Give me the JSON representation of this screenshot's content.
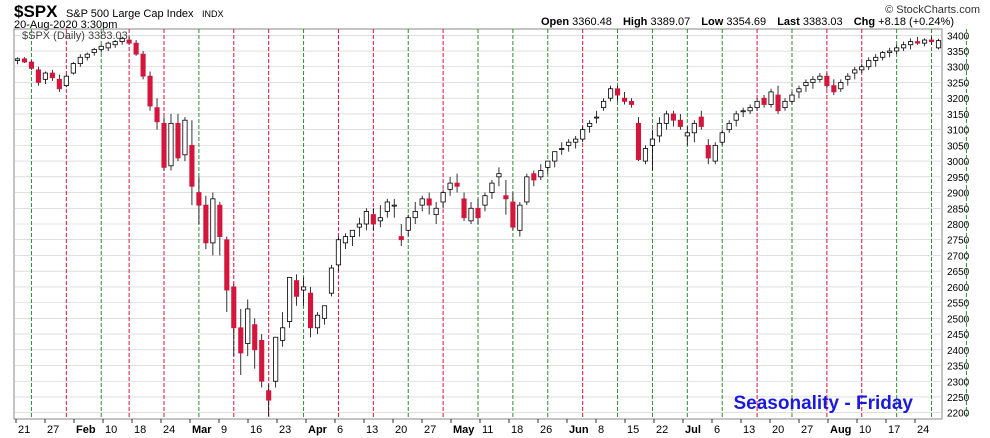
{
  "header": {
    "symbol": "$SPX",
    "description": "S&P 500 Large Cap Index",
    "exchange": "INDX",
    "brand": "© StockCharts.com",
    "date": "20-Aug-2020 3:30pm",
    "ohlc": {
      "open_label": "Open",
      "open": "3360.48",
      "high_label": "High",
      "high": "3389.07",
      "low_label": "Low",
      "low": "3354.69",
      "last_label": "Last",
      "last": "3383.03",
      "chg_label": "Chg",
      "chg": "+8.18 (+0.24%)"
    },
    "legend": "$SPX (Daily) 3383.03"
  },
  "colors": {
    "up": "#ffffff",
    "down": "#d4163c",
    "friday_up": "#2e8b2e",
    "friday_down": "#d4163c",
    "grid": "#cccccc",
    "annotation": "#1a1adc"
  },
  "annotation": "Seasonality - Friday",
  "chart_data": {
    "type": "candlestick",
    "title": "$SPX (Daily)",
    "yticks": [
      2200,
      2250,
      2300,
      2350,
      2400,
      2450,
      2500,
      2550,
      2600,
      2650,
      2700,
      2750,
      2800,
      2850,
      2900,
      2950,
      3000,
      3050,
      3100,
      3150,
      3200,
      3250,
      3300,
      3350,
      3400
    ],
    "ylim": [
      2180,
      3420
    ],
    "xticks": [
      {
        "label": "21",
        "month": false
      },
      {
        "label": "27",
        "month": false
      },
      {
        "label": "Feb",
        "month": true
      },
      {
        "label": "10",
        "month": false
      },
      {
        "label": "18",
        "month": false
      },
      {
        "label": "24",
        "month": false
      },
      {
        "label": "Mar",
        "month": true
      },
      {
        "label": "9",
        "month": false
      },
      {
        "label": "16",
        "month": false
      },
      {
        "label": "23",
        "month": false
      },
      {
        "label": "Apr",
        "month": true
      },
      {
        "label": "6",
        "month": false
      },
      {
        "label": "13",
        "month": false
      },
      {
        "label": "20",
        "month": false
      },
      {
        "label": "27",
        "month": false
      },
      {
        "label": "May",
        "month": true
      },
      {
        "label": "11",
        "month": false
      },
      {
        "label": "18",
        "month": false
      },
      {
        "label": "26",
        "month": false
      },
      {
        "label": "Jun",
        "month": true
      },
      {
        "label": "8",
        "month": false
      },
      {
        "label": "15",
        "month": false
      },
      {
        "label": "22",
        "month": false
      },
      {
        "label": "Jul",
        "month": true
      },
      {
        "label": "6",
        "month": false
      },
      {
        "label": "13",
        "month": false
      },
      {
        "label": "20",
        "month": false
      },
      {
        "label": "27",
        "month": false
      },
      {
        "label": "Aug",
        "month": true
      },
      {
        "label": "10",
        "month": false
      },
      {
        "label": "17",
        "month": false
      },
      {
        "label": "24",
        "month": false
      }
    ],
    "friday_lines": [
      {
        "index": 2,
        "result": "up"
      },
      {
        "index": 7,
        "result": "down"
      },
      {
        "index": 12,
        "result": "up"
      },
      {
        "index": 16,
        "result": "down"
      },
      {
        "index": 21,
        "result": "down"
      },
      {
        "index": 26,
        "result": "up"
      },
      {
        "index": 31,
        "result": "down"
      },
      {
        "index": 36,
        "result": "down"
      },
      {
        "index": 41,
        "result": "up"
      },
      {
        "index": 46,
        "result": "down"
      },
      {
        "index": 51,
        "result": "down"
      },
      {
        "index": 56,
        "result": "up"
      },
      {
        "index": 61,
        "result": "down"
      },
      {
        "index": 66,
        "result": "up"
      },
      {
        "index": 71,
        "result": "up"
      },
      {
        "index": 76,
        "result": "up"
      },
      {
        "index": 81,
        "result": "down"
      },
      {
        "index": 86,
        "result": "up"
      },
      {
        "index": 91,
        "result": "up"
      },
      {
        "index": 96,
        "result": "up"
      },
      {
        "index": 101,
        "result": "up"
      },
      {
        "index": 106,
        "result": "down"
      },
      {
        "index": 111,
        "result": "up"
      },
      {
        "index": 116,
        "result": "down"
      },
      {
        "index": 121,
        "result": "down"
      },
      {
        "index": 126,
        "result": "up"
      },
      {
        "index": 131,
        "result": "up"
      },
      {
        "index": 136,
        "result": "up"
      },
      {
        "index": 141,
        "result": "up"
      },
      {
        "index": 146,
        "result": "up"
      },
      {
        "index": 151,
        "result": "up"
      },
      {
        "index": 156,
        "result": "down"
      }
    ],
    "ohlc": [
      [
        3320,
        3330,
        3308,
        3325
      ],
      [
        3325,
        3330,
        3312,
        3315
      ],
      [
        3315,
        3320,
        3290,
        3295
      ],
      [
        3290,
        3300,
        3240,
        3250
      ],
      [
        3260,
        3285,
        3245,
        3280
      ],
      [
        3280,
        3290,
        3255,
        3265
      ],
      [
        3260,
        3275,
        3220,
        3230
      ],
      [
        3240,
        3275,
        3235,
        3270
      ],
      [
        3280,
        3315,
        3275,
        3310
      ],
      [
        3310,
        3340,
        3300,
        3330
      ],
      [
        3330,
        3345,
        3320,
        3340
      ],
      [
        3345,
        3360,
        3335,
        3355
      ],
      [
        3355,
        3370,
        3345,
        3365
      ],
      [
        3360,
        3380,
        3350,
        3375
      ],
      [
        3370,
        3385,
        3360,
        3380
      ],
      [
        3380,
        3395,
        3370,
        3390
      ],
      [
        3385,
        3395,
        3370,
        3375
      ],
      [
        3375,
        3385,
        3335,
        3340
      ],
      [
        3340,
        3350,
        3260,
        3270
      ],
      [
        3270,
        3285,
        3160,
        3175
      ],
      [
        3170,
        3200,
        3100,
        3125
      ],
      [
        3120,
        3140,
        2970,
        2980
      ],
      [
        2985,
        3150,
        2970,
        3120
      ],
      [
        3120,
        3150,
        3000,
        3010
      ],
      [
        3020,
        3140,
        3000,
        3130
      ],
      [
        3050,
        3130,
        2860,
        2920
      ],
      [
        2900,
        2950,
        2800,
        2860
      ],
      [
        2860,
        2890,
        2720,
        2740
      ],
      [
        2740,
        2900,
        2700,
        2880
      ],
      [
        2860,
        2870,
        2700,
        2760
      ],
      [
        2750,
        2760,
        2520,
        2590
      ],
      [
        2600,
        2610,
        2380,
        2470
      ],
      [
        2470,
        2530,
        2320,
        2390
      ],
      [
        2420,
        2560,
        2380,
        2530
      ],
      [
        2480,
        2500,
        2340,
        2400
      ],
      [
        2430,
        2450,
        2280,
        2300
      ],
      [
        2270,
        2290,
        2190,
        2240
      ],
      [
        2300,
        2440,
        2280,
        2440
      ],
      [
        2430,
        2520,
        2410,
        2470
      ],
      [
        2490,
        2630,
        2470,
        2630
      ],
      [
        2620,
        2640,
        2540,
        2570
      ],
      [
        2590,
        2630,
        2540,
        2600
      ],
      [
        2580,
        2600,
        2440,
        2470
      ],
      [
        2470,
        2520,
        2450,
        2510
      ],
      [
        2500,
        2540,
        2480,
        2540
      ],
      [
        2580,
        2670,
        2570,
        2660
      ],
      [
        2670,
        2760,
        2650,
        2750
      ],
      [
        2740,
        2770,
        2720,
        2760
      ],
      [
        2760,
        2780,
        2730,
        2780
      ],
      [
        2790,
        2820,
        2760,
        2800
      ],
      [
        2800,
        2850,
        2780,
        2840
      ],
      [
        2830,
        2850,
        2780,
        2800
      ],
      [
        2810,
        2860,
        2790,
        2820
      ],
      [
        2840,
        2880,
        2820,
        2870
      ],
      [
        2860,
        2880,
        2820,
        2860
      ],
      [
        2760,
        2800,
        2730,
        2750
      ],
      [
        2780,
        2830,
        2760,
        2820
      ],
      [
        2820,
        2870,
        2800,
        2840
      ],
      [
        2860,
        2890,
        2840,
        2880
      ],
      [
        2880,
        2900,
        2830,
        2860
      ],
      [
        2830,
        2870,
        2800,
        2850
      ],
      [
        2870,
        2910,
        2850,
        2900
      ],
      [
        2910,
        2950,
        2890,
        2930
      ],
      [
        2930,
        2960,
        2900,
        2920
      ],
      [
        2880,
        2900,
        2810,
        2820
      ],
      [
        2810,
        2870,
        2800,
        2850
      ],
      [
        2850,
        2880,
        2800,
        2820
      ],
      [
        2860,
        2900,
        2840,
        2890
      ],
      [
        2900,
        2940,
        2880,
        2930
      ],
      [
        2950,
        2980,
        2920,
        2960
      ],
      [
        2890,
        2940,
        2830,
        2880
      ],
      [
        2870,
        2900,
        2780,
        2790
      ],
      [
        2780,
        2870,
        2760,
        2860
      ],
      [
        2870,
        2960,
        2860,
        2950
      ],
      [
        2960,
        2970,
        2920,
        2940
      ],
      [
        2950,
        2990,
        2940,
        2970
      ],
      [
        2980,
        3000,
        2960,
        3000
      ],
      [
        3000,
        3030,
        2980,
        3030
      ],
      [
        3040,
        3060,
        3020,
        3040
      ],
      [
        3050,
        3070,
        3030,
        3060
      ],
      [
        3060,
        3080,
        3040,
        3070
      ],
      [
        3070,
        3110,
        3060,
        3100
      ],
      [
        3110,
        3130,
        3090,
        3120
      ],
      [
        3140,
        3160,
        3120,
        3140
      ],
      [
        3170,
        3200,
        3160,
        3190
      ],
      [
        3200,
        3240,
        3190,
        3230
      ],
      [
        3230,
        3240,
        3190,
        3210
      ],
      [
        3200,
        3220,
        3180,
        3190
      ],
      [
        3190,
        3200,
        3170,
        3180
      ],
      [
        3120,
        3140,
        3000,
        3005
      ],
      [
        3000,
        3050,
        2990,
        3040
      ],
      [
        3050,
        3100,
        2970,
        3070
      ],
      [
        3080,
        3140,
        3060,
        3120
      ],
      [
        3120,
        3160,
        3100,
        3150
      ],
      [
        3150,
        3160,
        3110,
        3130
      ],
      [
        3130,
        3150,
        3100,
        3110
      ],
      [
        3080,
        3110,
        3050,
        3090
      ],
      [
        3090,
        3130,
        3060,
        3120
      ],
      [
        3140,
        3160,
        3100,
        3110
      ],
      [
        3050,
        3070,
        2990,
        3010
      ],
      [
        3000,
        3060,
        2990,
        3050
      ],
      [
        3060,
        3100,
        3050,
        3090
      ],
      [
        3100,
        3130,
        3090,
        3120
      ],
      [
        3130,
        3160,
        3110,
        3150
      ],
      [
        3160,
        3170,
        3140,
        3160
      ],
      [
        3160,
        3180,
        3150,
        3170
      ],
      [
        3170,
        3200,
        3160,
        3190
      ],
      [
        3200,
        3210,
        3170,
        3180
      ],
      [
        3180,
        3230,
        3170,
        3220
      ],
      [
        3210,
        3240,
        3150,
        3160
      ],
      [
        3170,
        3200,
        3160,
        3190
      ],
      [
        3190,
        3220,
        3180,
        3210
      ],
      [
        3220,
        3240,
        3200,
        3230
      ],
      [
        3240,
        3260,
        3220,
        3250
      ],
      [
        3250,
        3270,
        3230,
        3260
      ],
      [
        3260,
        3280,
        3250,
        3270
      ],
      [
        3270,
        3280,
        3230,
        3240
      ],
      [
        3240,
        3260,
        3210,
        3220
      ],
      [
        3230,
        3260,
        3220,
        3250
      ],
      [
        3260,
        3280,
        3240,
        3270
      ],
      [
        3280,
        3300,
        3260,
        3290
      ],
      [
        3290,
        3310,
        3280,
        3300
      ],
      [
        3300,
        3330,
        3290,
        3320
      ],
      [
        3320,
        3340,
        3300,
        3330
      ],
      [
        3330,
        3350,
        3320,
        3345
      ],
      [
        3345,
        3360,
        3330,
        3350
      ],
      [
        3350,
        3370,
        3340,
        3360
      ],
      [
        3360,
        3380,
        3350,
        3370
      ],
      [
        3370,
        3390,
        3355,
        3380
      ],
      [
        3380,
        3395,
        3370,
        3375
      ],
      [
        3375,
        3390,
        3365,
        3385
      ],
      [
        3385,
        3395,
        3370,
        3380
      ],
      [
        3360,
        3389,
        3355,
        3383
      ]
    ]
  }
}
